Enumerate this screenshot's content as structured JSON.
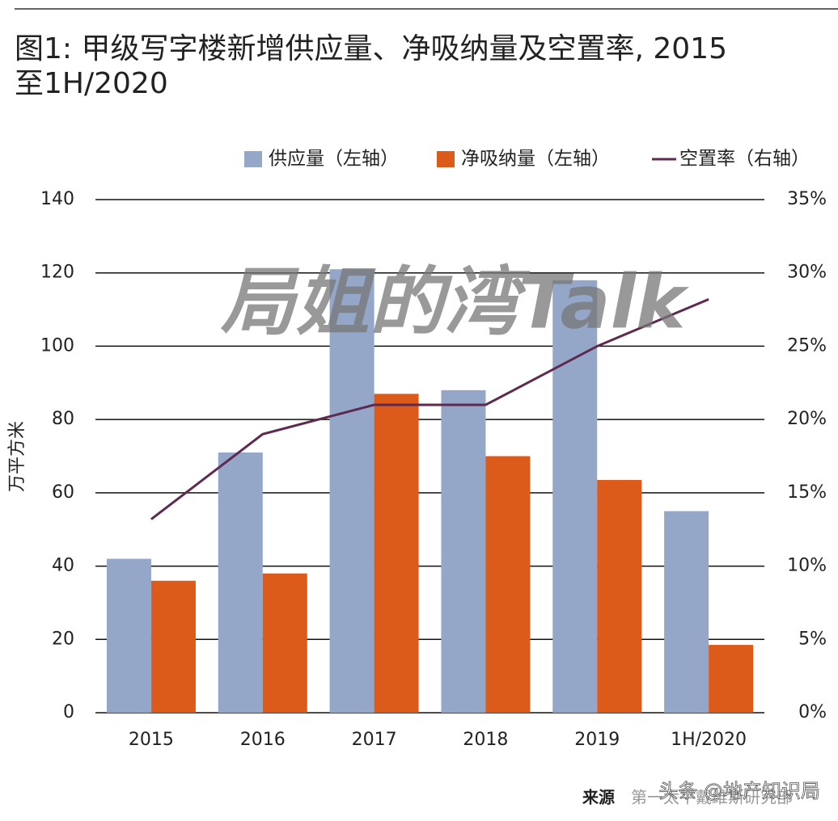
{
  "chart_data": {
    "type": "bar",
    "title": "图1: 甲级写字楼新增供应量、净吸纳量及空置率, 2015",
    "subtitle": "至1H/2020",
    "y_label": "万平方米",
    "categories": [
      "2015",
      "2016",
      "2017",
      "2018",
      "2019",
      "1H/2020"
    ],
    "series": [
      {
        "name": "供应量（左轴）",
        "color": "#94a7c9",
        "values": [
          42,
          71,
          121,
          88,
          118,
          55
        ]
      },
      {
        "name": "净吸纳量（左轴）",
        "color": "#dc5a1a",
        "values": [
          36,
          38,
          87,
          70,
          63.5,
          18.5
        ]
      },
      {
        "name": "空置率（右轴）",
        "color": "#5e2a50",
        "type": "line",
        "axis": "y2",
        "values": [
          13.2,
          19,
          21,
          21,
          25,
          28.2
        ]
      }
    ],
    "ylim": [
      0,
      140
    ],
    "yticks": [
      0,
      20,
      40,
      60,
      80,
      100,
      120,
      140
    ],
    "y2lim": [
      0,
      35
    ],
    "y2ticks": [
      {
        "value": 0,
        "label": "0%"
      },
      {
        "value": 5,
        "label": "5%"
      },
      {
        "value": 10,
        "label": "10%"
      },
      {
        "value": 15,
        "label": "15%"
      },
      {
        "value": 20,
        "label": "20%"
      },
      {
        "value": 25,
        "label": "25%"
      },
      {
        "value": 30,
        "label": "30%"
      },
      {
        "value": 35,
        "label": "35%"
      }
    ],
    "grid": true,
    "source_label": "来源",
    "source": "第一太平戴维斯研究部",
    "watermark": "局姐的湾Talk",
    "watermark2": "头条 @地产知识局"
  }
}
